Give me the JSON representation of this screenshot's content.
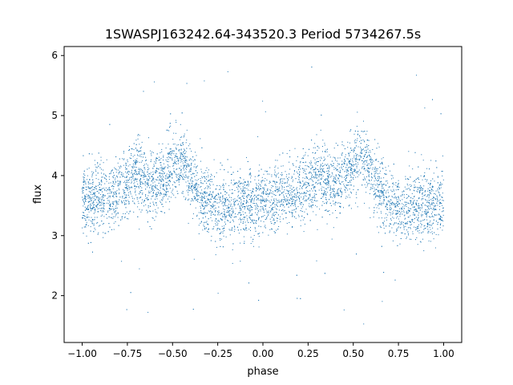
{
  "chart_data": {
    "type": "scatter",
    "title": "1SWASPJ163242.64-343520.3 Period 5734267.5s",
    "xlabel": "phase",
    "ylabel": "flux",
    "xlim": [
      -1.1,
      1.1
    ],
    "ylim": [
      1.22,
      6.15
    ],
    "xticks": [
      -1.0,
      -0.75,
      -0.5,
      -0.25,
      0.0,
      0.25,
      0.5,
      0.75,
      1.0
    ],
    "xtick_labels": [
      "−1.00",
      "−0.75",
      "−0.50",
      "−0.25",
      "0.00",
      "0.25",
      "0.50",
      "0.75",
      "1.00"
    ],
    "yticks": [
      2,
      3,
      4,
      5,
      6
    ],
    "ytick_labels": [
      "2",
      "3",
      "4",
      "5",
      "6"
    ],
    "grid": false,
    "point_color": "#1f77b4",
    "series": [
      {
        "profile": [
          [
            -1.0,
            3.55
          ],
          [
            -0.95,
            3.55
          ],
          [
            -0.9,
            3.7
          ],
          [
            -0.85,
            3.65
          ],
          [
            -0.8,
            3.75
          ],
          [
            -0.75,
            3.85
          ],
          [
            -0.7,
            4.05
          ],
          [
            -0.65,
            3.95
          ],
          [
            -0.6,
            3.85
          ],
          [
            -0.55,
            3.95
          ],
          [
            -0.5,
            4.15
          ],
          [
            -0.45,
            4.3
          ],
          [
            -0.4,
            3.95
          ],
          [
            -0.35,
            3.75
          ],
          [
            -0.3,
            3.55
          ],
          [
            -0.25,
            3.45
          ],
          [
            -0.2,
            3.45
          ],
          [
            -0.15,
            3.5
          ],
          [
            -0.1,
            3.55
          ],
          [
            -0.05,
            3.5
          ],
          [
            0.0,
            3.55
          ],
          [
            0.05,
            3.55
          ],
          [
            0.1,
            3.7
          ],
          [
            0.15,
            3.65
          ],
          [
            0.2,
            3.75
          ],
          [
            0.25,
            3.85
          ],
          [
            0.3,
            4.05
          ],
          [
            0.35,
            3.95
          ],
          [
            0.4,
            3.85
          ],
          [
            0.45,
            3.95
          ],
          [
            0.5,
            4.15
          ],
          [
            0.55,
            4.3
          ],
          [
            0.6,
            3.95
          ],
          [
            0.65,
            3.75
          ],
          [
            0.7,
            3.55
          ],
          [
            0.75,
            3.45
          ],
          [
            0.8,
            3.45
          ],
          [
            0.85,
            3.5
          ],
          [
            0.9,
            3.55
          ],
          [
            0.95,
            3.5
          ],
          [
            1.0,
            3.55
          ]
        ],
        "scatter_sigma": 0.28,
        "outlier_range": [
          1.45,
          5.85
        ]
      }
    ]
  }
}
